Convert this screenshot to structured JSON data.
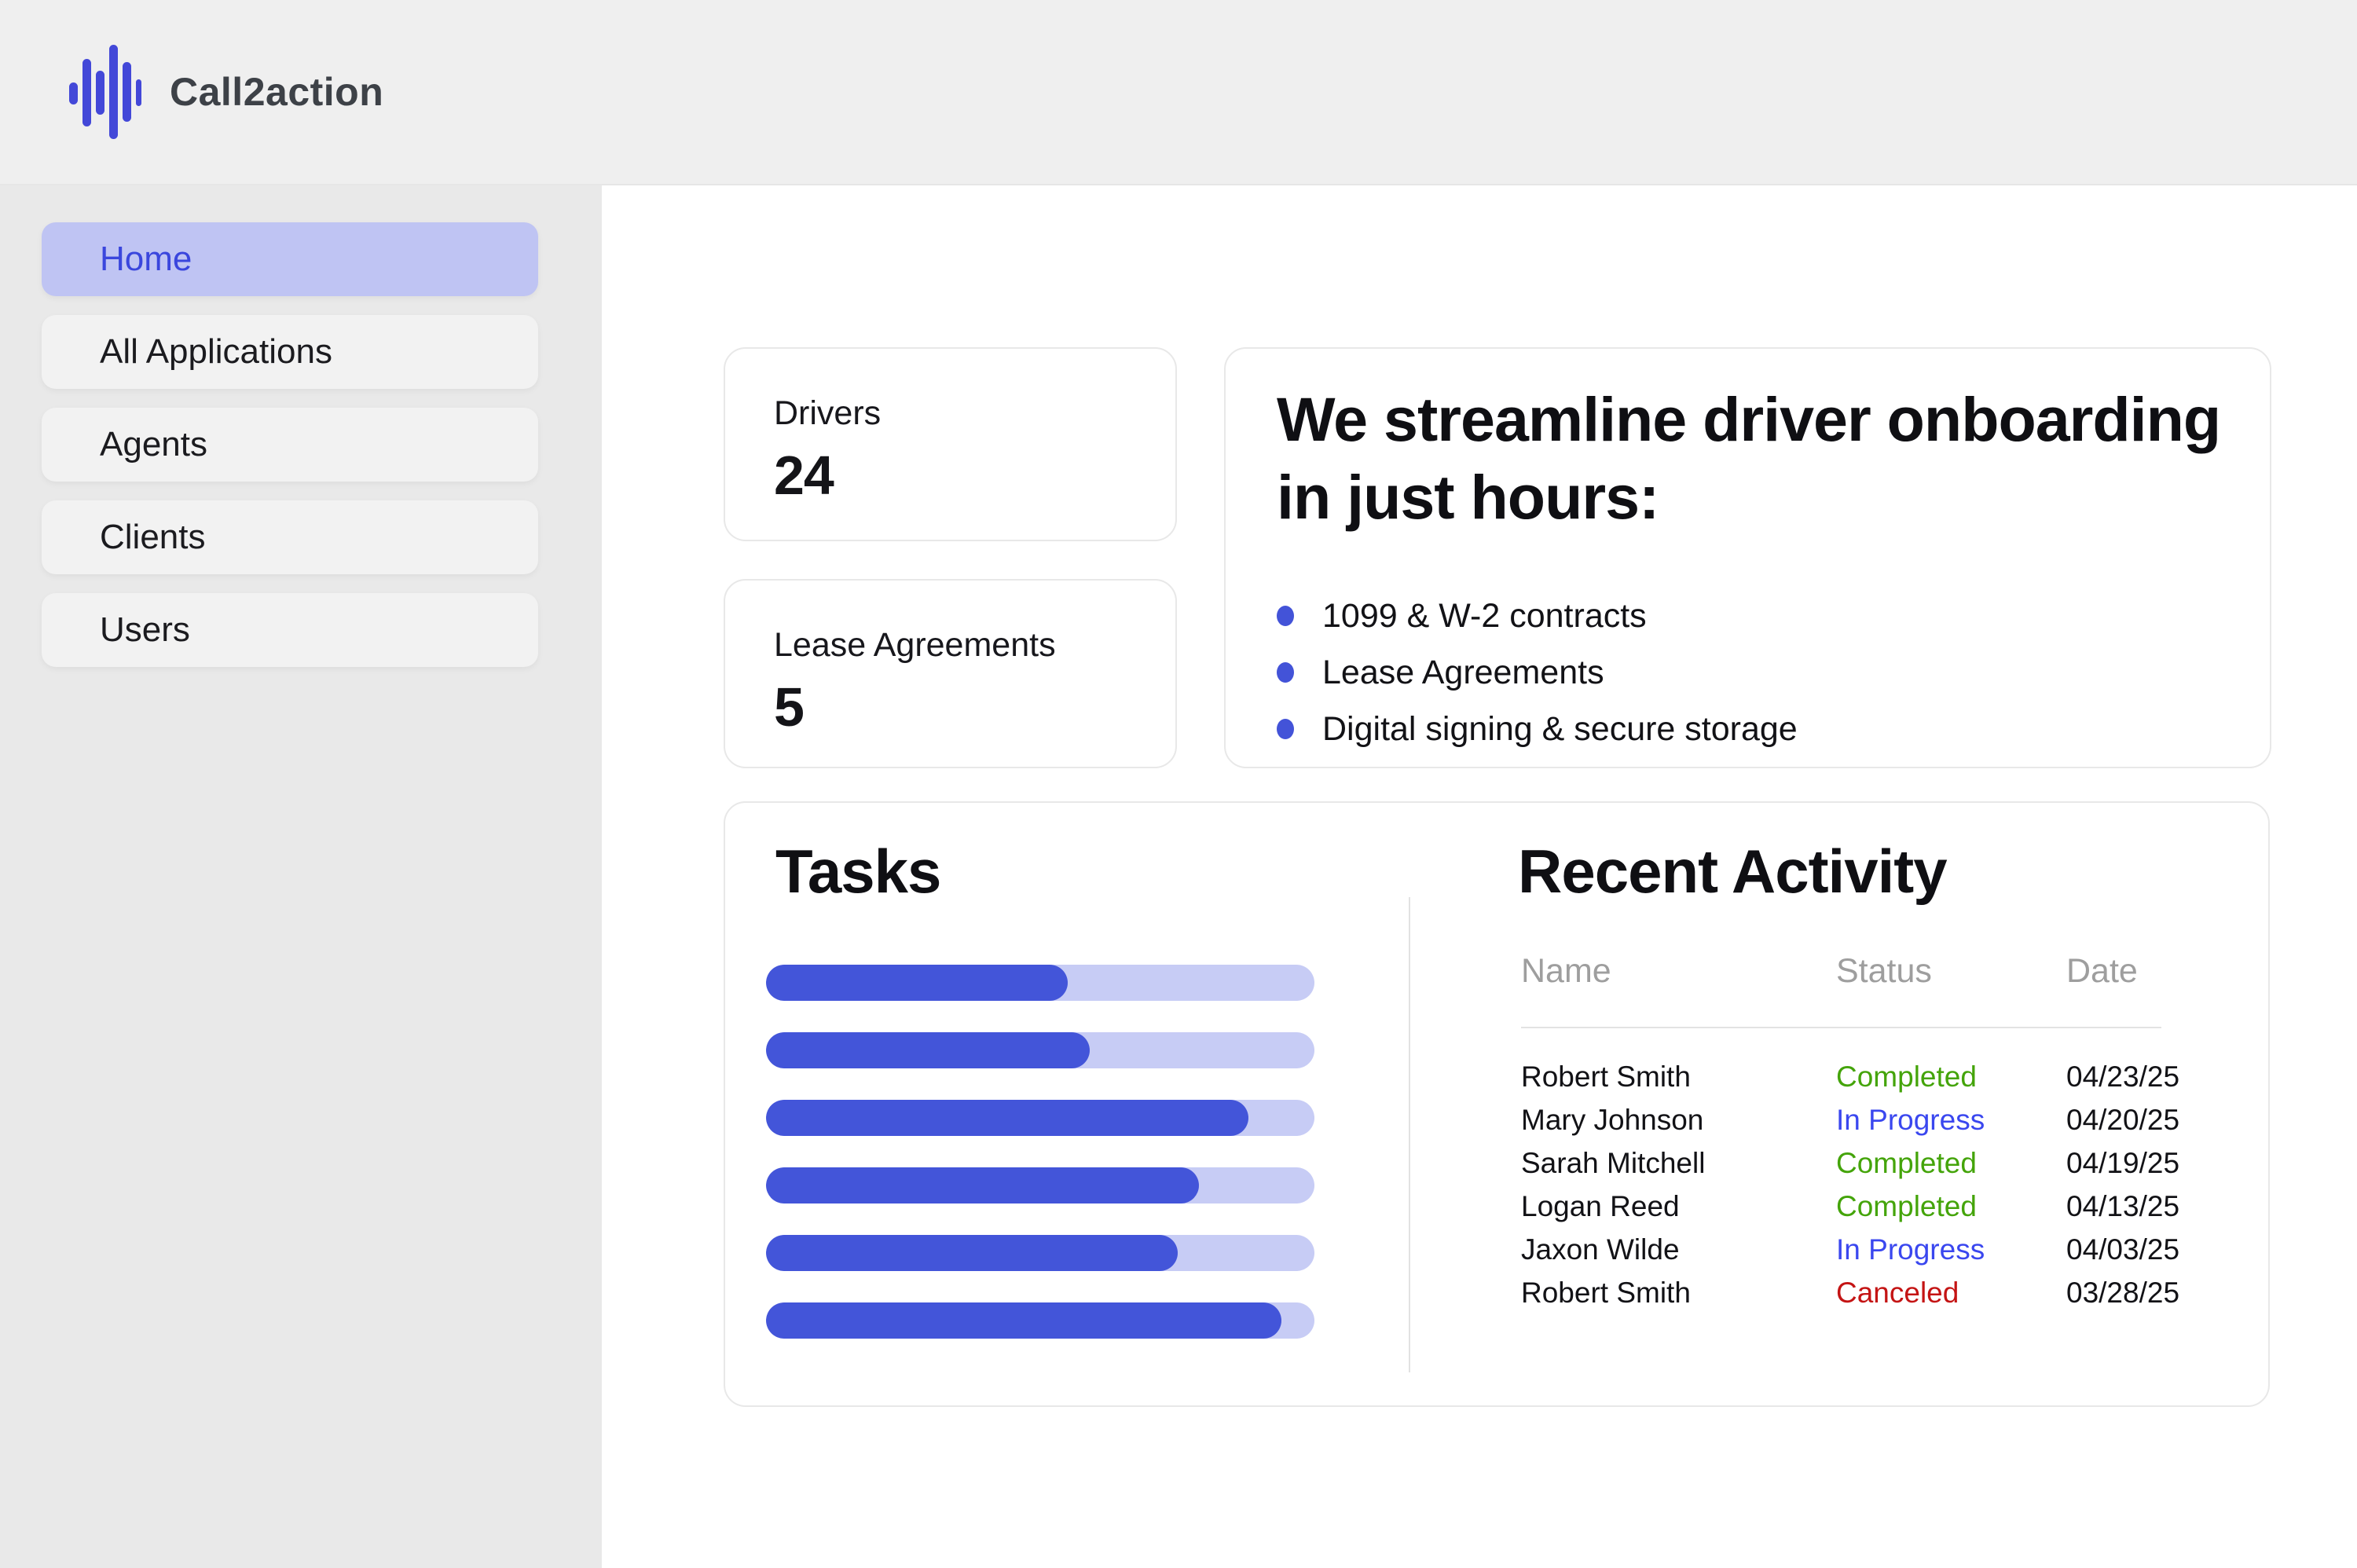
{
  "brand": {
    "name": "Call2action"
  },
  "sidebar": {
    "items": [
      {
        "label": "Home",
        "state": "active"
      },
      {
        "label": "All Applications",
        "state": ""
      },
      {
        "label": "Agents",
        "state": ""
      },
      {
        "label": "Clients",
        "state": ""
      },
      {
        "label": "Users",
        "state": ""
      }
    ]
  },
  "stats": {
    "drivers": {
      "label": "Drivers",
      "value": "24"
    },
    "lease": {
      "label": "Lease Agreements",
      "value": "5"
    }
  },
  "hero": {
    "title_line1": "We streamline driver onboarding",
    "title_line2": "in just hours:",
    "bullets": [
      "1099 & W-2 contracts",
      "Lease Agreements",
      "Digital signing & secure storage"
    ]
  },
  "tasks": {
    "title": "Tasks",
    "bars": [
      {
        "pct": 55
      },
      {
        "pct": 59
      },
      {
        "pct": 88
      },
      {
        "pct": 79
      },
      {
        "pct": 75
      },
      {
        "pct": 94
      }
    ]
  },
  "recent": {
    "title": "Recent Activity",
    "columns": {
      "name": "Name",
      "status": "Status",
      "date": "Date"
    },
    "rows": [
      {
        "name": "Robert Smith",
        "status": "Completed",
        "status_class": "completed",
        "date": "04/23/25"
      },
      {
        "name": "Mary Johnson",
        "status": "In Progress",
        "status_class": "in-progress",
        "date": "04/20/25"
      },
      {
        "name": "Sarah Mitchell",
        "status": "Completed",
        "status_class": "completed",
        "date": "04/19/25"
      },
      {
        "name": "Logan Reed",
        "status": "Completed",
        "status_class": "completed",
        "date": "04/13/25"
      },
      {
        "name": "Jaxon Wilde",
        "status": "In Progress",
        "status_class": "in-progress",
        "date": "04/03/25"
      },
      {
        "name": "Robert Smith",
        "status": "Canceled",
        "status_class": "canceled",
        "date": "03/28/25"
      }
    ]
  },
  "colors": {
    "accent": "#4355d9",
    "accent_track": "#c7ccf5",
    "active_nav_bg": "#bfc4f3",
    "active_nav_text": "#3a46dd",
    "status_completed": "#44a40a",
    "status_in_progress": "#3a47ef",
    "status_canceled": "#c41414",
    "header_bg": "#efefef",
    "sidebar_bg": "#e9e9e9"
  }
}
